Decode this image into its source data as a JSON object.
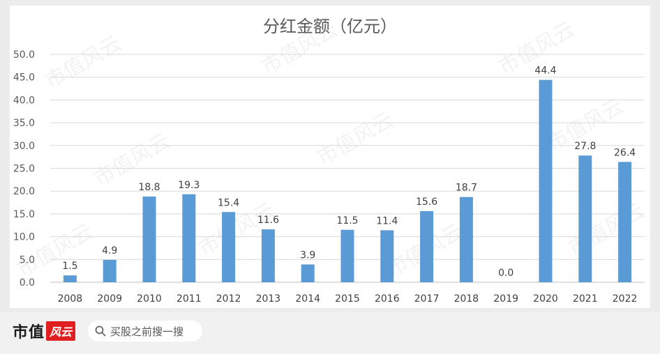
{
  "chart_data": {
    "type": "bar",
    "title": "分红金额（亿元）",
    "categories": [
      "2008",
      "2009",
      "2010",
      "2011",
      "2012",
      "2013",
      "2014",
      "2015",
      "2016",
      "2017",
      "2018",
      "2019",
      "2020",
      "2021",
      "2022"
    ],
    "values": [
      1.5,
      4.9,
      18.8,
      19.3,
      15.4,
      11.6,
      3.9,
      11.5,
      11.4,
      15.6,
      18.7,
      0.0,
      44.4,
      27.8,
      26.4
    ],
    "data_labels": [
      "1.5",
      "4.9",
      "18.8",
      "19.3",
      "15.4",
      "11.6",
      "3.9",
      "11.5",
      "11.4",
      "15.6",
      "18.7",
      "0.0",
      "44.4",
      "27.8",
      "26.4"
    ],
    "yticks": [
      "0.0",
      "5.0",
      "10.0",
      "15.0",
      "20.0",
      "25.0",
      "30.0",
      "35.0",
      "40.0",
      "45.0",
      "50.0"
    ],
    "ylim": [
      0,
      50
    ],
    "xlabel": "",
    "ylabel": "",
    "grid": true,
    "legend": "none",
    "bar_color": "#5b9bd5"
  },
  "watermark": "市值风云",
  "footer": {
    "brand": "市值",
    "brand_logo": "风云",
    "search_label": "买股之前搜一搜",
    "search_icon": "search-icon"
  }
}
